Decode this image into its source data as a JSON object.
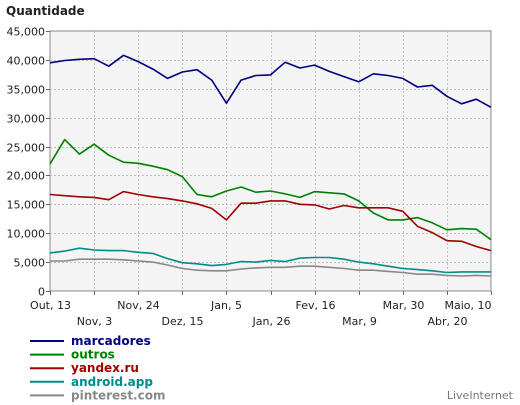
{
  "chart_data": {
    "type": "line",
    "title": "",
    "ylabel": "Quantidade",
    "xlabel": "",
    "ylim": [
      0,
      45000
    ],
    "yticks": [
      "0",
      "5,000",
      "10,000",
      "15,000",
      "20,000",
      "25,000",
      "30,000",
      "35,000",
      "40,000",
      "45,000"
    ],
    "ytick_values": [
      0,
      5000,
      10000,
      15000,
      20000,
      25000,
      30000,
      35000,
      40000,
      45000
    ],
    "xticks_top": [
      {
        "label": "Out, 13",
        "index": 0
      },
      {
        "label": "Nov, 24",
        "index": 6
      },
      {
        "label": "Jan, 5",
        "index": 12
      },
      {
        "label": "Fev, 16",
        "index": 18
      },
      {
        "label": "Mar, 30",
        "index": 24
      },
      {
        "label": "Maio, 10",
        "index": 30
      }
    ],
    "xticks_bottom": [
      {
        "label": "Nov, 3",
        "index": 3
      },
      {
        "label": "Dez, 15",
        "index": 9
      },
      {
        "label": "Jan, 26",
        "index": 15
      },
      {
        "label": "Mar, 9",
        "index": 21
      },
      {
        "label": "Abr, 20",
        "index": 27
      }
    ],
    "grid": true,
    "legend_position": "bottom-left",
    "series": [
      {
        "name": "marcadores",
        "color": "#000080",
        "values": [
          39500,
          39900,
          40100,
          40200,
          38900,
          40800,
          39700,
          38400,
          36800,
          37900,
          38300,
          36500,
          32500,
          36500,
          37300,
          37400,
          39600,
          38600,
          39100,
          38000,
          37100,
          36200,
          37600,
          37300,
          36800,
          35300,
          35600,
          33700,
          32400,
          33200,
          31800
        ]
      },
      {
        "name": "outros",
        "color": "#008000",
        "values": [
          22000,
          26200,
          23700,
          25400,
          23500,
          22300,
          22100,
          21600,
          21000,
          19800,
          16700,
          16300,
          17300,
          18000,
          17100,
          17300,
          16800,
          16200,
          17200,
          17000,
          16800,
          15600,
          13500,
          12300,
          12300,
          12700,
          11800,
          10600,
          10800,
          10700,
          8900
        ]
      },
      {
        "name": "yandex.ru",
        "color": "#a00000",
        "values": [
          16700,
          16500,
          16300,
          16200,
          15800,
          17200,
          16700,
          16300,
          16000,
          15600,
          15100,
          14300,
          12300,
          15200,
          15200,
          15600,
          15600,
          15000,
          14900,
          14200,
          14800,
          14400,
          14400,
          14400,
          13800,
          11200,
          10100,
          8700,
          8600,
          7700,
          7000
        ]
      },
      {
        "name": "android.app",
        "color": "#008b8b",
        "values": [
          6600,
          6900,
          7400,
          7100,
          7000,
          7000,
          6700,
          6500,
          5600,
          4900,
          4700,
          4400,
          4600,
          5100,
          5000,
          5300,
          5100,
          5700,
          5800,
          5800,
          5500,
          5000,
          4700,
          4300,
          3900,
          3700,
          3500,
          3200,
          3300,
          3300,
          3300
        ]
      },
      {
        "name": "pinterest.com",
        "color": "#888888",
        "values": [
          5200,
          5200,
          5500,
          5500,
          5500,
          5400,
          5200,
          5000,
          4500,
          3900,
          3600,
          3500,
          3500,
          3800,
          4000,
          4100,
          4100,
          4300,
          4300,
          4100,
          3900,
          3600,
          3600,
          3400,
          3200,
          2900,
          2900,
          2700,
          2600,
          2700,
          2600
        ]
      }
    ]
  },
  "branding": {
    "text": "LiveInternet"
  }
}
